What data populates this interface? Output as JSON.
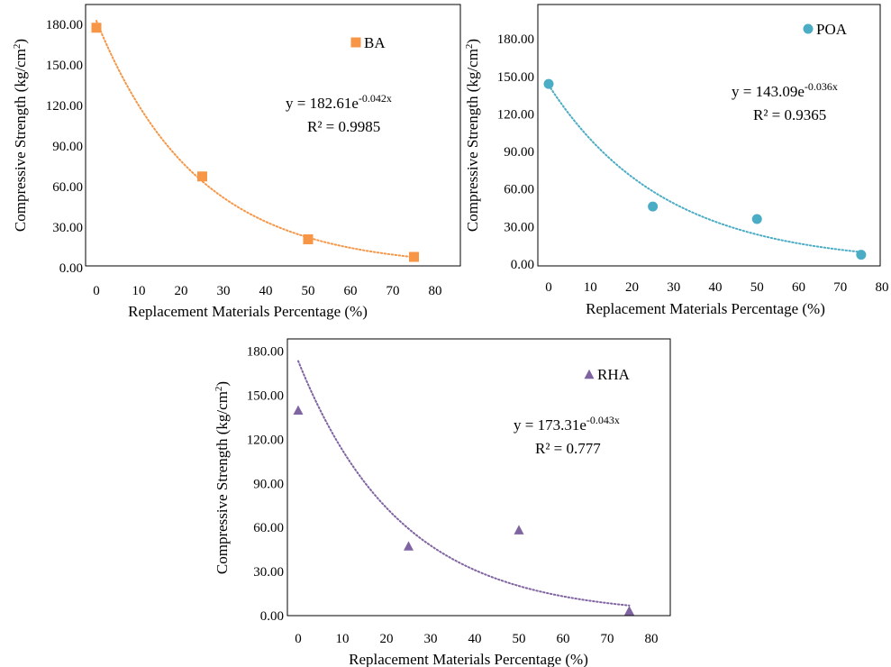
{
  "chart_data": [
    {
      "type": "scatter",
      "marker": "square",
      "color": "#F79646",
      "series": [
        {
          "name": "BA",
          "x": [
            0,
            25,
            50,
            75
          ],
          "y": [
            177.5,
            67.5,
            21.0,
            8.0
          ]
        }
      ],
      "xticks": [
        "0",
        "10",
        "20",
        "30",
        "40",
        "50",
        "60",
        "70",
        "80"
      ],
      "yticks": [
        "0.00",
        "30.00",
        "60.00",
        "90.00",
        "120.00",
        "150.00",
        "180.00"
      ],
      "xlim": [
        0,
        80
      ],
      "ylim": [
        0,
        180
      ],
      "xlabel": "Replacement Materials Percentage (%)",
      "ylabel_main": "Compressive Strength (kg/cm",
      "ylabel_sup": "2",
      "ylabel_end": ")",
      "trendline": {
        "type": "exponential",
        "a": 182.61,
        "b": -0.042
      },
      "equation_main": "y = 182.61e",
      "equation_sup": "-0.042x",
      "r2": "R² = 0.9985",
      "grid": false,
      "legend_position": "top-right"
    },
    {
      "type": "scatter",
      "marker": "circle",
      "color": "#4BACC6",
      "series": [
        {
          "name": "POA",
          "x": [
            0,
            25,
            50,
            75
          ],
          "y": [
            144.0,
            46.0,
            36.0,
            7.5
          ]
        }
      ],
      "xticks": [
        "0",
        "10",
        "20",
        "30",
        "40",
        "50",
        "60",
        "70",
        "80"
      ],
      "yticks": [
        "0.00",
        "30.00",
        "60.00",
        "90.00",
        "120.00",
        "150.00",
        "180.00"
      ],
      "xlim": [
        0,
        80
      ],
      "ylim": [
        0,
        180
      ],
      "xlabel": "Replacement Materials Percentage (%)",
      "ylabel_main": "Compressive Strength (kg/cm",
      "ylabel_sup": "2",
      "ylabel_end": ")",
      "trendline": {
        "type": "exponential",
        "a": 143.09,
        "b": -0.036
      },
      "equation_main": "y = 143.09e",
      "equation_sup": "-0.036x",
      "r2": "R² = 0.9365",
      "grid": false,
      "legend_position": "top-right"
    },
    {
      "type": "scatter",
      "marker": "triangle",
      "color": "#8064A2",
      "series": [
        {
          "name": "RHA",
          "x": [
            0,
            25,
            50,
            75
          ],
          "y": [
            140.0,
            47.5,
            58.5,
            3.5
          ]
        }
      ],
      "xticks": [
        "0",
        "10",
        "20",
        "30",
        "40",
        "50",
        "60",
        "70",
        "80"
      ],
      "yticks": [
        "0.00",
        "30.00",
        "60.00",
        "90.00",
        "120.00",
        "150.00",
        "180.00"
      ],
      "xlim": [
        0,
        80
      ],
      "ylim": [
        0,
        180
      ],
      "xlabel": "Replacement Materials Percentage (%)",
      "ylabel_main": "Compressive Strength (kg/cm",
      "ylabel_sup": "2",
      "ylabel_end": ")",
      "trendline": {
        "type": "exponential",
        "a": 173.31,
        "b": -0.043
      },
      "equation_main": "y = 173.31e",
      "equation_sup": "-0.043x",
      "r2": "R² = 0.777",
      "grid": false,
      "legend_position": "top-right"
    }
  ]
}
